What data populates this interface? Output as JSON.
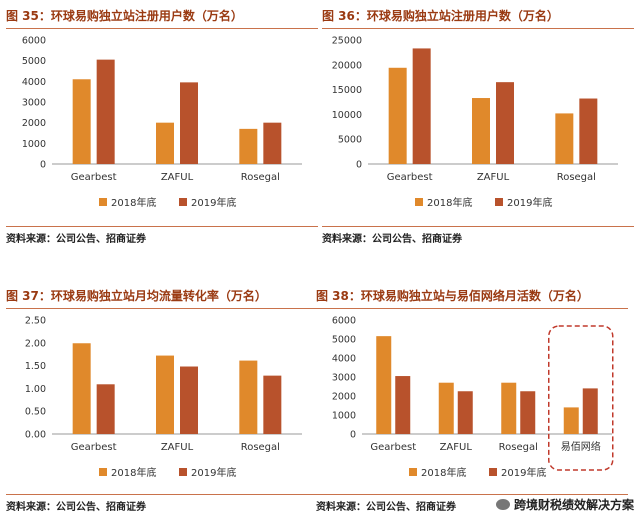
{
  "colors": {
    "y2018": "#e0892b",
    "y2019": "#b8522c",
    "title": "#9a3a12",
    "rule": "#c9724b",
    "highlight": "#c0392b"
  },
  "legend": {
    "label_2018": "2018年底",
    "label_2019": "2019年底"
  },
  "chart_data": [
    {
      "type": "bar",
      "title": "图 35：环球易购独立站注册用户数（万名）",
      "categories": [
        "Gearbest",
        "ZAFUL",
        "Rosegal"
      ],
      "series": [
        {
          "name": "2018年底",
          "values": [
            4100,
            2000,
            1700
          ]
        },
        {
          "name": "2019年底",
          "values": [
            5050,
            3950,
            2000
          ]
        }
      ],
      "ylim": [
        0,
        6000
      ],
      "yticks": [
        "0",
        "1000",
        "2000",
        "3000",
        "4000",
        "5000",
        "6000"
      ],
      "source": "资料来源：公司公告、招商证券"
    },
    {
      "type": "bar",
      "title": "图 36：环球易购独立站注册用户数（万名）",
      "categories": [
        "Gearbest",
        "ZAFUL",
        "Rosegal"
      ],
      "series": [
        {
          "name": "2018年底",
          "values": [
            19400,
            13300,
            10200
          ]
        },
        {
          "name": "2019年底",
          "values": [
            23300,
            16500,
            13200
          ]
        }
      ],
      "ylim": [
        0,
        25000
      ],
      "yticks": [
        "0",
        "5000",
        "10000",
        "15000",
        "20000",
        "25000"
      ],
      "source": "资料来源：公司公告、招商证券"
    },
    {
      "type": "bar",
      "title": "图 37：环球易购独立站月均流量转化率（万名）",
      "categories": [
        "Gearbest",
        "ZAFUL",
        "Rosegal"
      ],
      "series": [
        {
          "name": "2018年底",
          "values": [
            1.99,
            1.72,
            1.61
          ]
        },
        {
          "name": "2019年底",
          "values": [
            1.09,
            1.48,
            1.28
          ]
        }
      ],
      "ylim": [
        0,
        2.5
      ],
      "yticks": [
        "0.00",
        "0.50",
        "1.00",
        "1.50",
        "2.00",
        "2.50"
      ],
      "source": "资料来源：公司公告、招商证券"
    },
    {
      "type": "bar",
      "title": "图 38：环球易购独立站与易佰网络月活数（万名）",
      "categories": [
        "Gearbest",
        "ZAFUL",
        "Rosegal",
        "易佰网络"
      ],
      "series": [
        {
          "name": "2018年底",
          "values": [
            5150,
            2700,
            2700,
            1400
          ]
        },
        {
          "name": "2019年底",
          "values": [
            3050,
            2250,
            2250,
            2400
          ]
        }
      ],
      "ylim": [
        0,
        6000
      ],
      "yticks": [
        "0",
        "1000",
        "2000",
        "3000",
        "4000",
        "5000",
        "6000"
      ],
      "highlight_category": "易佰网络",
      "source": "资料来源：公司公告、招商证券"
    }
  ],
  "watermark": {
    "text": "跨境财税绩效解决方案"
  }
}
